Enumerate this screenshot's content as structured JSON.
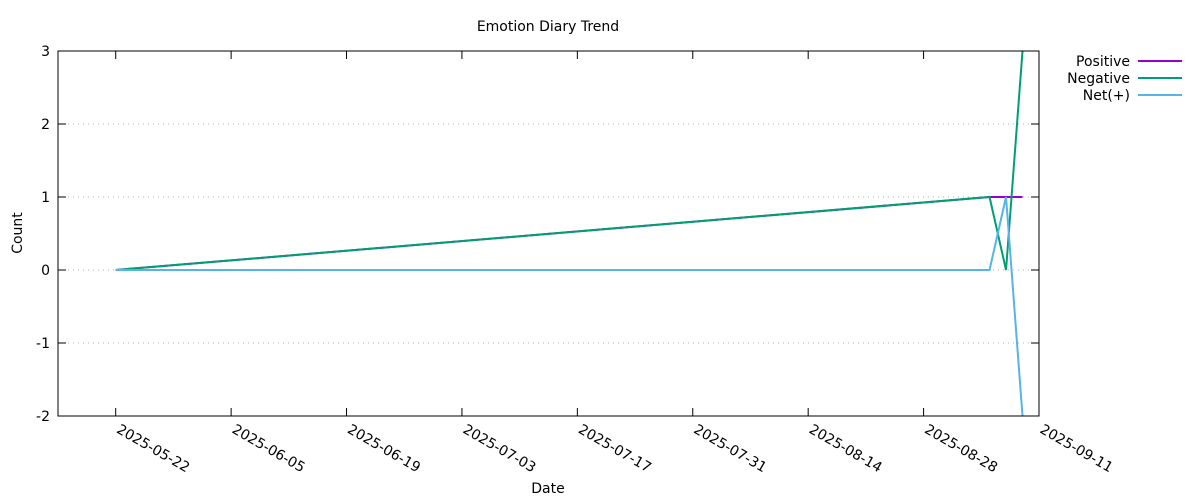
{
  "chart_data": {
    "type": "line",
    "title": "Emotion Diary Trend",
    "xlabel": "Date",
    "ylabel": "Count",
    "xlim": [
      "2025-05-15",
      "2025-09-11"
    ],
    "ylim": [
      -2,
      3
    ],
    "x_ticks": [
      "2025-05-22",
      "2025-06-05",
      "2025-06-19",
      "2025-07-03",
      "2025-07-17",
      "2025-07-31",
      "2025-08-14",
      "2025-08-28",
      "2025-09-11"
    ],
    "y_ticks": [
      "-2",
      "-1",
      "0",
      "1",
      "2",
      "3"
    ],
    "grid": "horizontal-dotted",
    "legend_position": "top-right-outside",
    "series": [
      {
        "name": "Positive",
        "color": "#9400d3",
        "points": [
          {
            "x": "2025-05-22",
            "y": 0
          },
          {
            "x": "2025-09-05",
            "y": 1
          },
          {
            "x": "2025-09-07",
            "y": 1
          },
          {
            "x": "2025-09-09",
            "y": 1
          }
        ]
      },
      {
        "name": "Negative",
        "color": "#009e73",
        "points": [
          {
            "x": "2025-05-22",
            "y": 0
          },
          {
            "x": "2025-09-05",
            "y": 1
          },
          {
            "x": "2025-09-07",
            "y": 0
          },
          {
            "x": "2025-09-09",
            "y": 3
          }
        ]
      },
      {
        "name": "Net(+)",
        "color": "#56b4e9",
        "points": [
          {
            "x": "2025-05-22",
            "y": 0
          },
          {
            "x": "2025-09-05",
            "y": 0
          },
          {
            "x": "2025-09-07",
            "y": 1
          },
          {
            "x": "2025-09-09",
            "y": -2
          }
        ]
      }
    ]
  }
}
